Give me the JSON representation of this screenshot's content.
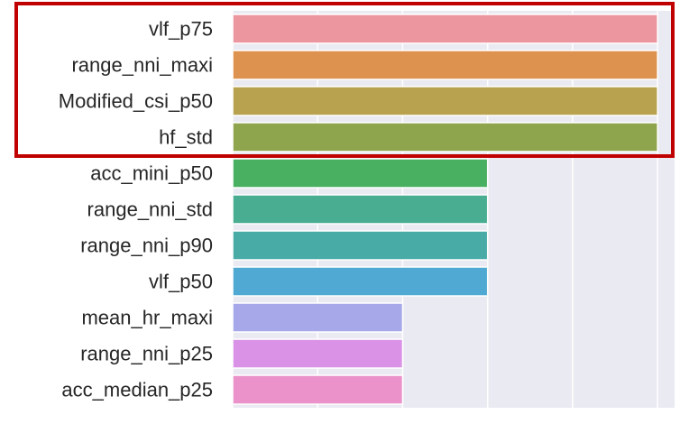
{
  "chart_data": {
    "type": "bar",
    "orientation": "horizontal",
    "categories": [
      "vlf_p75",
      "range_nni_maxi",
      "Modified_csi_p50",
      "hf_std",
      "acc_mini_p50",
      "range_nni_std",
      "range_nni_p90",
      "vlf_p50",
      "mean_hr_maxi",
      "range_nni_p25",
      "acc_median_p25"
    ],
    "values": [
      5,
      5,
      5,
      5,
      3,
      3,
      3,
      3,
      2,
      2,
      2
    ],
    "xlim": [
      0,
      5.2
    ],
    "grid": true,
    "highlight": {
      "categories": [
        "vlf_p75",
        "range_nni_maxi",
        "Modified_csi_p50",
        "hf_std"
      ],
      "color": "#c00000"
    },
    "colors": [
      "#ec96a0",
      "#de924f",
      "#b8a14f",
      "#8fa54d",
      "#49b062",
      "#49ad91",
      "#49aba6",
      "#4fa9d2",
      "#a6a8ea",
      "#d992e6",
      "#ea92c9"
    ],
    "background": "#eaeaf2",
    "gridColor": "#ffffff"
  }
}
